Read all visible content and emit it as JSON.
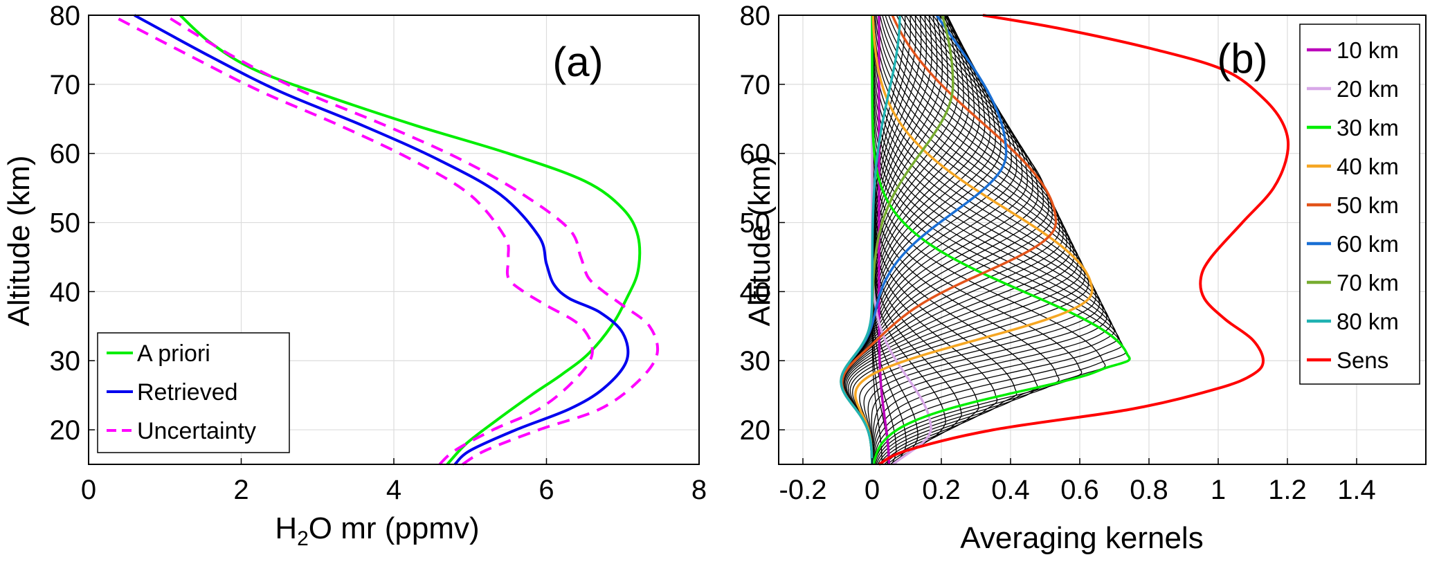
{
  "chart_data": [
    {
      "panel_label": "(a)",
      "type": "line",
      "xlabel_base": "H",
      "xlabel_sub": "2",
      "xlabel_rest": "O mr (ppmv)",
      "ylabel": "Altitude (km)",
      "xlim": [
        0,
        8
      ],
      "ylim": [
        15,
        80
      ],
      "xticks": [
        0,
        2,
        4,
        6,
        8
      ],
      "xtick_labels": [
        "0",
        "2",
        "4",
        "6",
        "8"
      ],
      "yticks": [
        20,
        30,
        40,
        50,
        60,
        70,
        80
      ],
      "ytick_labels": [
        "20",
        "30",
        "40",
        "50",
        "60",
        "70",
        "80"
      ],
      "grid": true,
      "legend_position": "bottom-left",
      "series": [
        {
          "name": "A priori",
          "color": "#00ee00",
          "style": "solid",
          "x": [
            4.7,
            4.95,
            5.3,
            5.8,
            6.2,
            6.55,
            6.85,
            7.05,
            7.2,
            7.2,
            7.0,
            6.5,
            5.5,
            4.3,
            3.2,
            2.2,
            1.6,
            1.2
          ],
          "y": [
            15,
            18,
            21,
            25,
            28,
            31,
            35,
            39,
            43,
            48,
            52,
            56,
            60,
            64,
            68,
            72,
            76,
            80
          ]
        },
        {
          "name": "Retrieved",
          "color": "#0000ee",
          "style": "solid",
          "x": [
            4.8,
            5.0,
            5.6,
            6.3,
            6.75,
            7.05,
            7.0,
            6.7,
            6.3,
            6.1,
            6.0,
            5.9,
            5.4,
            4.6,
            3.6,
            2.5,
            1.6,
            0.6
          ],
          "y": [
            15,
            17,
            20,
            23,
            26,
            30,
            34,
            37,
            39,
            41,
            44,
            48,
            54,
            59,
            64,
            69,
            74,
            80
          ]
        },
        {
          "name": "Uncertainty",
          "color": "#ff00ff",
          "style": "dashed",
          "x": [
            4.9,
            5.2,
            5.9,
            6.7,
            7.2,
            7.45,
            7.35,
            7.0,
            6.75,
            6.55,
            6.45,
            6.3,
            5.7,
            4.9,
            3.9,
            2.8,
            1.9,
            1.0
          ],
          "y": [
            15,
            17,
            20,
            23,
            27,
            31,
            35,
            38,
            40,
            42,
            45,
            49,
            54,
            59,
            64,
            69,
            74,
            80
          ]
        },
        {
          "name": "Uncertainty (lower)",
          "color": "#ff00ff",
          "style": "dashed",
          "x": [
            4.6,
            4.8,
            5.3,
            5.9,
            6.35,
            6.6,
            6.45,
            6.0,
            5.7,
            5.5,
            5.5,
            5.45,
            5.0,
            4.25,
            3.3,
            2.25,
            1.35,
            0.3
          ],
          "y": [
            15,
            17,
            20,
            23,
            27,
            31,
            35,
            38,
            40,
            42,
            45,
            48,
            54,
            59,
            64,
            69,
            74,
            80
          ]
        }
      ],
      "legend": [
        {
          "label": "A priori",
          "color": "#00ee00",
          "style": "solid"
        },
        {
          "label": "Retrieved",
          "color": "#0000ee",
          "style": "solid"
        },
        {
          "label": "Uncertainty",
          "color": "#ff00ff",
          "style": "dashed"
        }
      ]
    },
    {
      "panel_label": "(b)",
      "type": "line",
      "xlabel": "Averaging kernels",
      "ylabel": "Altitude (km)",
      "xlim": [
        -0.27,
        1.6
      ],
      "ylim": [
        15,
        80
      ],
      "xticks": [
        -0.2,
        0,
        0.2,
        0.4,
        0.6,
        0.8,
        1,
        1.2,
        1.4
      ],
      "xtick_labels": [
        "-0.2",
        "0",
        "0.2",
        "0.4",
        "0.6",
        "0.8",
        "1",
        "1.2",
        "1.4"
      ],
      "yticks": [
        20,
        30,
        40,
        50,
        60,
        70,
        80
      ],
      "ytick_labels": [
        "20",
        "30",
        "40",
        "50",
        "60",
        "70",
        "80"
      ],
      "grid": true,
      "legend_position": "top-right",
      "background_kernels": "black thin kernel lines for all retrieval levels",
      "highlighted_kernels": [
        {
          "label": "10 km",
          "color": "#bb00bb",
          "peak_alt": 10
        },
        {
          "label": "20 km",
          "color": "#d8a8e8",
          "peak_alt": 20
        },
        {
          "label": "30 km",
          "color": "#00ee00",
          "peak_alt": 30
        },
        {
          "label": "40 km",
          "color": "#f5a623",
          "peak_alt": 40
        },
        {
          "label": "50 km",
          "color": "#e2531a",
          "peak_alt": 50
        },
        {
          "label": "60 km",
          "color": "#1a6fd4",
          "peak_alt": 60
        },
        {
          "label": "70 km",
          "color": "#77ac30",
          "peak_alt": 70
        },
        {
          "label": "80 km",
          "color": "#20b2b2",
          "peak_alt": 80
        }
      ],
      "sens": {
        "label": "Sens",
        "color": "#ff0000",
        "x": [
          0.02,
          0.1,
          0.35,
          0.75,
          1.0,
          1.1,
          1.13,
          1.1,
          1.02,
          0.96,
          0.95,
          0.98,
          1.07,
          1.16,
          1.2,
          1.19,
          1.13,
          1.02,
          0.82,
          0.55,
          0.32
        ],
        "y": [
          15,
          17,
          20,
          23,
          26,
          28,
          30,
          33,
          36,
          39,
          42,
          45,
          50,
          55,
          60,
          64,
          68,
          72,
          75,
          78,
          80
        ]
      },
      "legend": [
        {
          "label": "10 km",
          "color": "#bb00bb"
        },
        {
          "label": "20 km",
          "color": "#d8a8e8"
        },
        {
          "label": "30 km",
          "color": "#00ee00"
        },
        {
          "label": "40 km",
          "color": "#f5a623"
        },
        {
          "label": "50 km",
          "color": "#e2531a"
        },
        {
          "label": "60 km",
          "color": "#1a6fd4"
        },
        {
          "label": "70 km",
          "color": "#77ac30"
        },
        {
          "label": "80 km",
          "color": "#20b2b2"
        },
        {
          "label": "Sens",
          "color": "#ff0000"
        }
      ]
    }
  ]
}
